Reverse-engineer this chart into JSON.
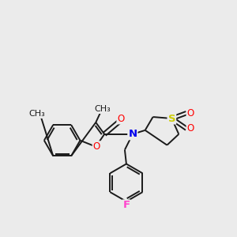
{
  "background_color": "#ebebeb",
  "bond_color": "#1a1a1a",
  "atom_colors": {
    "O": "#ff0000",
    "N": "#0000ee",
    "S": "#cccc00",
    "F": "#ff44cc"
  },
  "figsize": [
    3.0,
    3.0
  ],
  "dpi": 100
}
